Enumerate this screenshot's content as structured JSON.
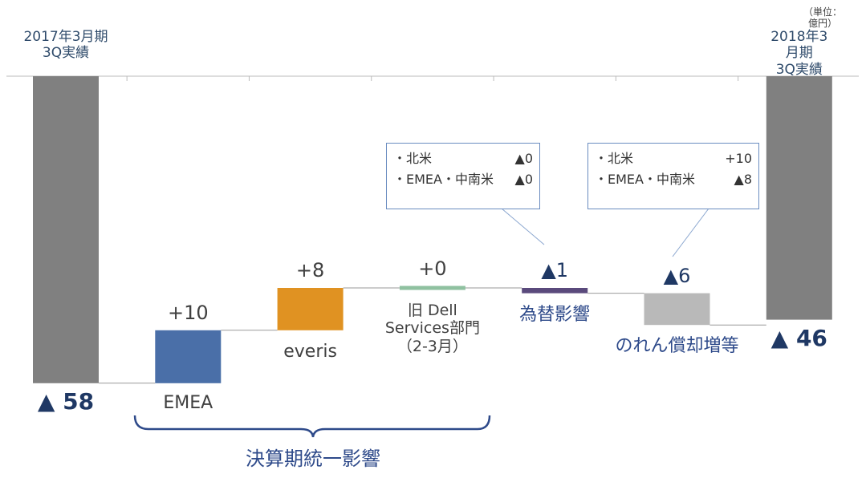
{
  "chart_data": {
    "type": "waterfall",
    "unit": "（単位：億円）",
    "categories": [
      "2017年3月期\n3Q実績",
      "EMEA",
      "everis",
      "旧 Dell\nServices部門\n（2-3月）",
      "為替影響",
      "のれん償却増等",
      "2018年3月期\n3Q実績"
    ],
    "values": [
      -58,
      10,
      8,
      0,
      -1,
      -6,
      -46
    ],
    "value_labels": [
      "▲ 58",
      "+10",
      "+8",
      "+0",
      "▲1",
      "▲6",
      "▲ 46"
    ],
    "colors": [
      "#808080",
      "#4a6fa8",
      "#e09222",
      "#8fc1a0",
      "#5a4a7c",
      "#b9b9b9",
      "#808080"
    ],
    "bracket_label": "決算期統一影響",
    "callouts": [
      {
        "rows": [
          [
            "・北米",
            "▲0"
          ],
          [
            "・EMEA・中南米",
            "▲0"
          ]
        ]
      },
      {
        "rows": [
          [
            "・北米",
            "+10"
          ],
          [
            "・EMEA・中南米",
            "▲8"
          ]
        ]
      }
    ]
  }
}
